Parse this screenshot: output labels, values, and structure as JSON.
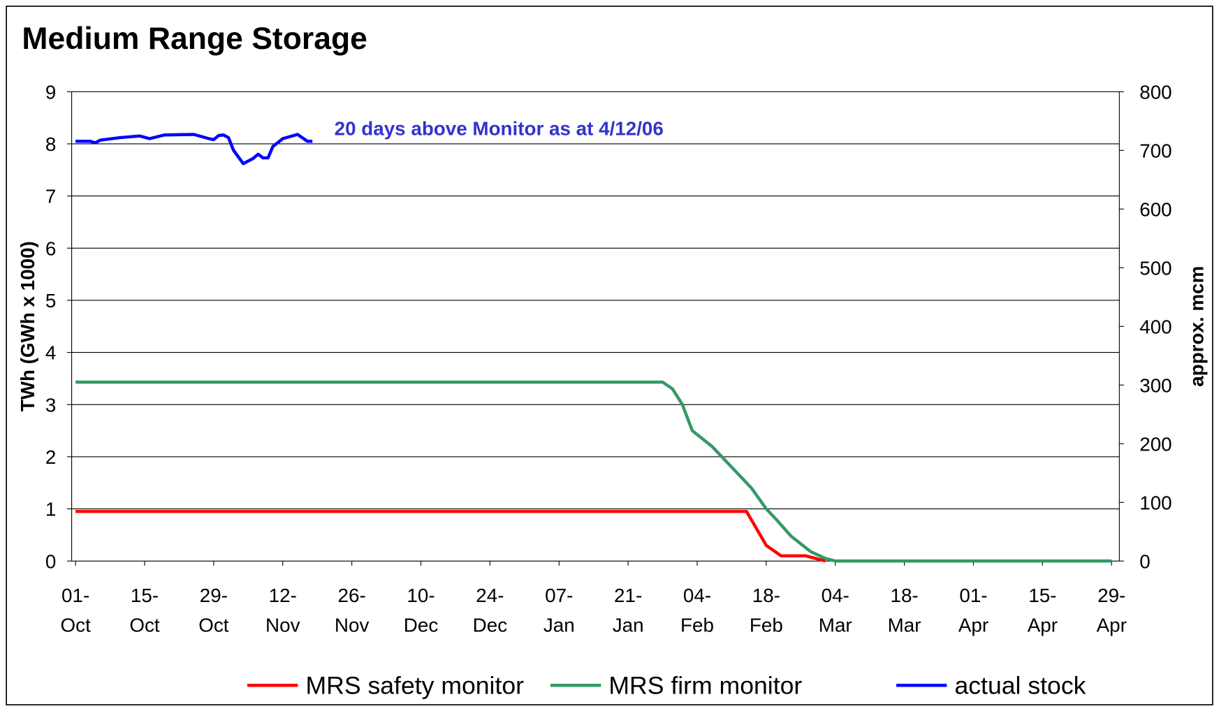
{
  "chart_data": {
    "type": "line",
    "title": "Medium Range Storage",
    "ylabel": "TWh (GWh x 1000)",
    "y2label": "approx. mcm",
    "annotation": "20 days above Monitor as at 4/12/06",
    "categories": [
      "01-Oct",
      "15-Oct",
      "29-Oct",
      "12-Nov",
      "26-Nov",
      "10-Dec",
      "24-Dec",
      "07-Jan",
      "21-Jan",
      "04-Feb",
      "18-Feb",
      "04-Mar",
      "18-Mar",
      "01-Apr",
      "15-Apr",
      "29-Apr"
    ],
    "ylim": [
      0,
      9
    ],
    "yticks": [
      0,
      1,
      2,
      3,
      4,
      5,
      6,
      7,
      8,
      9
    ],
    "y2lim": [
      0,
      800
    ],
    "y2ticks": [
      0,
      100,
      200,
      300,
      400,
      500,
      600,
      700,
      800
    ],
    "grid": true,
    "legend": "bottom",
    "series": [
      {
        "name": "MRS safety monitor",
        "color": "#ff0000",
        "x": [
          "01-Oct",
          "14-Feb",
          "18-Feb",
          "21-Feb",
          "26-Feb",
          "02-Mar"
        ],
        "values": [
          0.95,
          0.95,
          0.3,
          0.1,
          0.1,
          0
        ]
      },
      {
        "name": "MRS firm monitor",
        "color": "#339966",
        "x": [
          "01-Oct",
          "28-Jan",
          "30-Jan",
          "01-Feb",
          "03-Feb",
          "07-Feb",
          "11-Feb",
          "15-Feb",
          "18-Feb",
          "20-Feb",
          "23-Feb",
          "27-Feb",
          "02-Mar",
          "04-Mar",
          "29-Apr"
        ],
        "values": [
          3.43,
          3.43,
          3.3,
          3.0,
          2.5,
          2.2,
          1.8,
          1.4,
          1.0,
          0.8,
          0.48,
          0.18,
          0.05,
          0,
          0
        ]
      },
      {
        "name": "actual stock",
        "color": "#0000ff",
        "x": [
          "01-Oct",
          "04-Oct",
          "05-Oct",
          "06-Oct",
          "10-Oct",
          "14-Oct",
          "16-Oct",
          "19-Oct",
          "25-Oct",
          "28-Oct",
          "29-Oct",
          "30-Oct",
          "31-Oct",
          "01-Nov",
          "02-Nov",
          "04-Nov",
          "06-Nov",
          "07-Nov",
          "08-Nov",
          "09-Nov",
          "10-Nov",
          "12-Nov",
          "15-Nov",
          "17-Nov",
          "18-Nov"
        ],
        "values": [
          8.05,
          8.05,
          8.02,
          8.07,
          8.12,
          8.15,
          8.1,
          8.17,
          8.18,
          8.1,
          8.08,
          8.16,
          8.17,
          8.12,
          7.88,
          7.62,
          7.72,
          7.8,
          7.73,
          7.73,
          7.95,
          8.1,
          8.18,
          8.05,
          8.05
        ]
      }
    ]
  }
}
